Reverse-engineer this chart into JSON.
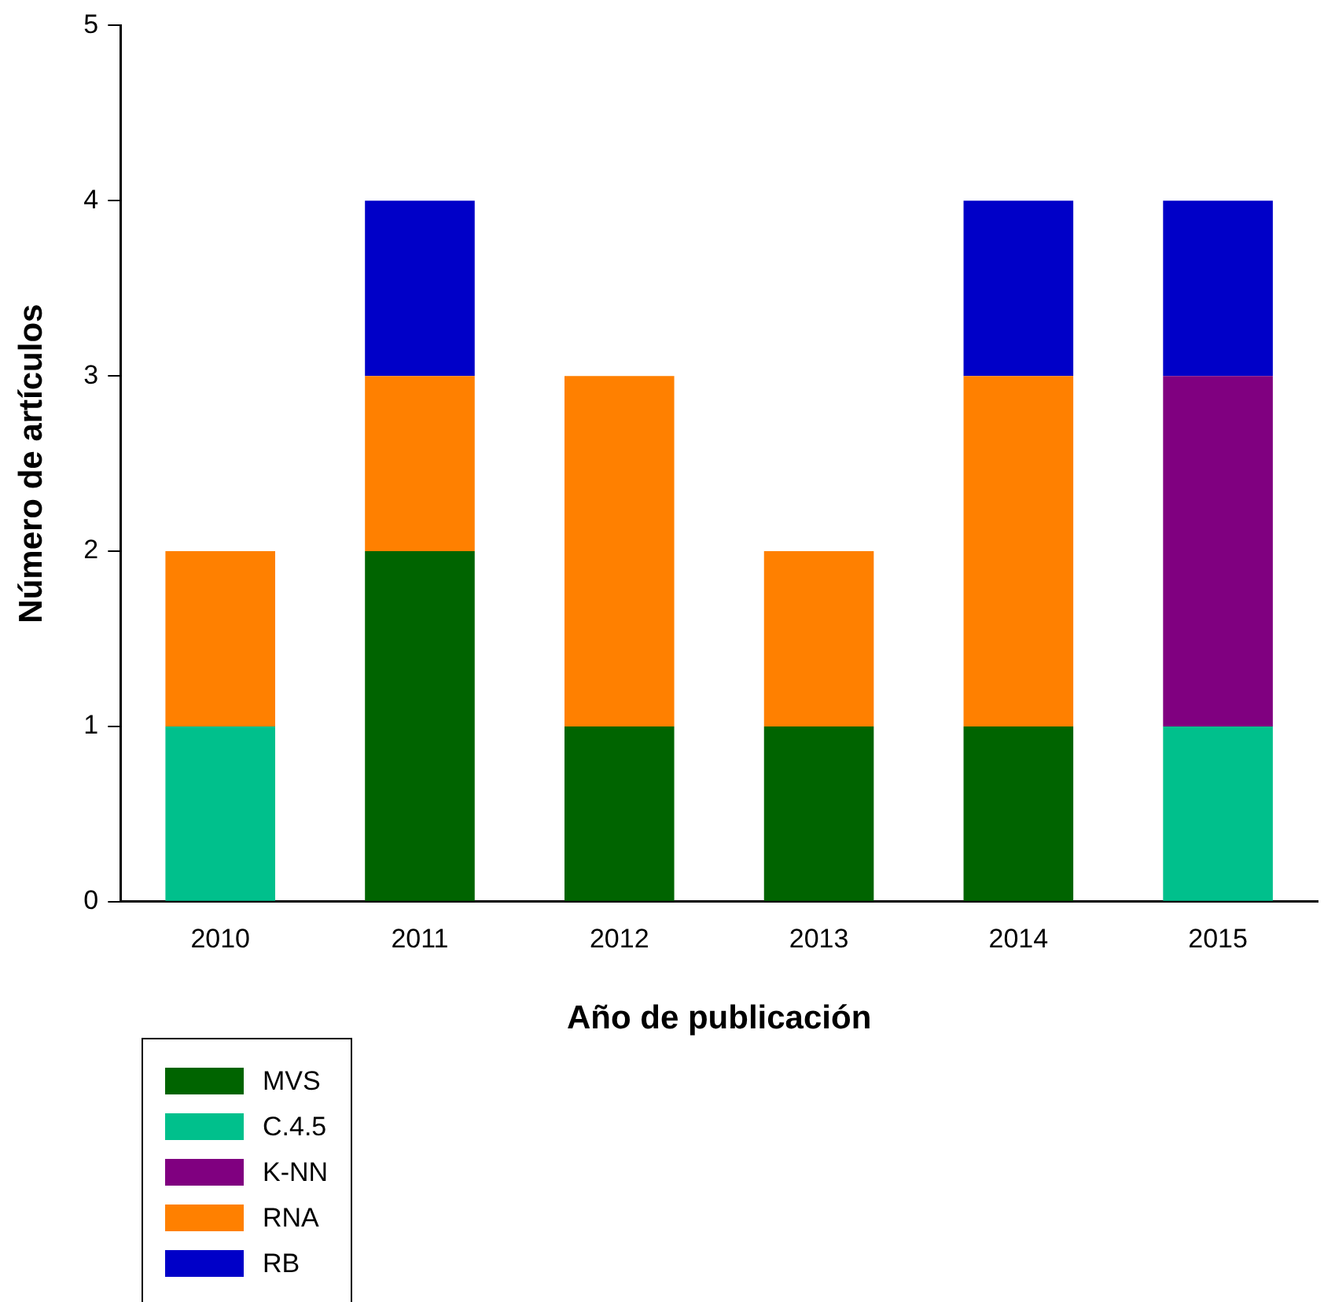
{
  "chart_data": {
    "type": "bar",
    "stacked": true,
    "xlabel": "Año de publicación",
    "ylabel": "Número de artículos",
    "categories": [
      "2010",
      "2011",
      "2012",
      "2013",
      "2014",
      "2015"
    ],
    "series": [
      {
        "name": "MVS",
        "color": "#006400",
        "values": [
          null,
          2,
          1,
          1,
          1,
          null
        ]
      },
      {
        "name": "C.4.5",
        "color": "#00c08c",
        "values": [
          1,
          null,
          null,
          null,
          null,
          1
        ]
      },
      {
        "name": "K-NN",
        "color": "#800080",
        "values": [
          null,
          null,
          null,
          null,
          null,
          2
        ]
      },
      {
        "name": "RNA",
        "color": "#ff8000",
        "values": [
          1,
          1,
          2,
          1,
          2,
          null
        ]
      },
      {
        "name": "RB",
        "color": "#0000c8",
        "values": [
          null,
          1,
          null,
          null,
          1,
          1
        ]
      }
    ],
    "ylim": [
      0,
      5
    ],
    "yticks": [
      0,
      1,
      2,
      3,
      4,
      5
    ],
    "grid": false,
    "legend": "bottom left"
  }
}
